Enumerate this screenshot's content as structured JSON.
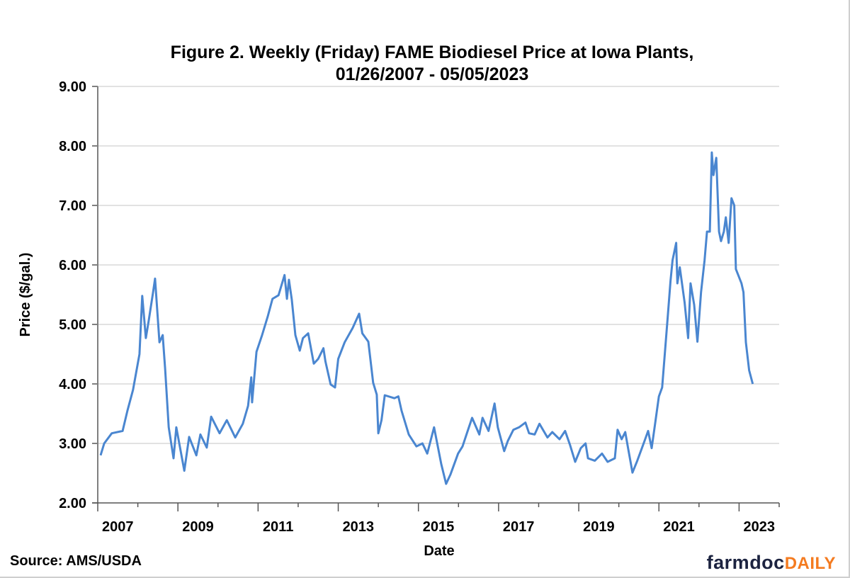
{
  "chart_data": {
    "type": "line",
    "title_line1": "Figure 2. Weekly (Friday) FAME Biodiesel Price at Iowa Plants,",
    "title_line2": "01/26/2007  - 05/05/2023",
    "xlabel": "Date",
    "ylabel": "Price ($/gal.)",
    "xlim": [
      2007,
      2024
    ],
    "ylim": [
      2.0,
      9.0
    ],
    "x_tick_labels": [
      "2007",
      "2009",
      "2011",
      "2013",
      "2015",
      "2017",
      "2019",
      "2021",
      "2023"
    ],
    "y_tick_labels": [
      "2.00",
      "3.00",
      "4.00",
      "5.00",
      "6.00",
      "7.00",
      "8.00",
      "9.00"
    ],
    "grid": "horizontal",
    "line_color": "#4a86d0",
    "series": [
      {
        "x": [
          2007.07,
          2007.16,
          2007.35,
          2007.62,
          2007.74,
          2007.88,
          2008.04,
          2008.11,
          2008.2,
          2008.27,
          2008.38,
          2008.43,
          2008.54,
          2008.62,
          2008.68,
          2008.77,
          2008.89,
          2008.96,
          2009.16,
          2009.28,
          2009.46,
          2009.56,
          2009.72,
          2009.83,
          2010.04,
          2010.22,
          2010.43,
          2010.62,
          2010.75,
          2010.83,
          2010.85,
          2010.96,
          2011.1,
          2011.24,
          2011.36,
          2011.51,
          2011.66,
          2011.72,
          2011.77,
          2011.84,
          2011.93,
          2012.04,
          2012.12,
          2012.25,
          2012.39,
          2012.5,
          2012.63,
          2012.68,
          2012.81,
          2012.92,
          2013.0,
          2013.16,
          2013.36,
          2013.52,
          2013.6,
          2013.75,
          2013.87,
          2013.96,
          2014.0,
          2014.08,
          2014.16,
          2014.4,
          2014.5,
          2014.58,
          2014.76,
          2014.95,
          2015.1,
          2015.22,
          2015.39,
          2015.57,
          2015.69,
          2015.8,
          2015.99,
          2016.1,
          2016.22,
          2016.34,
          2016.52,
          2016.6,
          2016.75,
          2016.9,
          2016.98,
          2017.14,
          2017.23,
          2017.37,
          2017.51,
          2017.67,
          2017.76,
          2017.9,
          2018.02,
          2018.22,
          2018.34,
          2018.52,
          2018.66,
          2018.78,
          2018.91,
          2019.05,
          2019.17,
          2019.23,
          2019.4,
          2019.58,
          2019.72,
          2019.9,
          2019.97,
          2020.07,
          2020.16,
          2020.23,
          2020.34,
          2020.46,
          2020.64,
          2020.73,
          2020.82,
          2020.9,
          2021.0,
          2021.08,
          2021.22,
          2021.29,
          2021.34,
          2021.43,
          2021.46,
          2021.52,
          2021.64,
          2021.73,
          2021.79,
          2021.88,
          2021.96,
          2022.05,
          2022.14,
          2022.2,
          2022.27,
          2022.32,
          2022.36,
          2022.43,
          2022.5,
          2022.55,
          2022.62,
          2022.67,
          2022.74,
          2022.81,
          2022.88,
          2022.92,
          2023.06,
          2023.11,
          2023.17,
          2023.25,
          2023.34
        ],
        "y": [
          2.8,
          3.0,
          3.17,
          3.21,
          3.55,
          3.9,
          4.5,
          5.48,
          4.77,
          5.06,
          5.54,
          5.77,
          4.7,
          4.82,
          4.26,
          3.27,
          2.75,
          3.27,
          2.54,
          3.11,
          2.8,
          3.15,
          2.93,
          3.45,
          3.17,
          3.39,
          3.1,
          3.33,
          3.63,
          4.11,
          3.69,
          4.54,
          4.82,
          5.13,
          5.43,
          5.49,
          5.83,
          5.43,
          5.75,
          5.42,
          4.82,
          4.56,
          4.77,
          4.85,
          4.34,
          4.42,
          4.6,
          4.38,
          3.99,
          3.94,
          4.42,
          4.7,
          4.94,
          5.18,
          4.85,
          4.71,
          4.02,
          3.82,
          3.17,
          3.39,
          3.81,
          3.76,
          3.79,
          3.55,
          3.15,
          2.95,
          3.0,
          2.83,
          3.27,
          2.65,
          2.32,
          2.48,
          2.83,
          2.95,
          3.19,
          3.43,
          3.15,
          3.43,
          3.21,
          3.67,
          3.27,
          2.87,
          3.04,
          3.23,
          3.27,
          3.35,
          3.17,
          3.15,
          3.33,
          3.1,
          3.19,
          3.07,
          3.21,
          2.98,
          2.69,
          2.92,
          3.0,
          2.75,
          2.71,
          2.83,
          2.69,
          2.75,
          3.23,
          3.07,
          3.19,
          2.92,
          2.51,
          2.71,
          3.04,
          3.21,
          2.92,
          3.31,
          3.79,
          3.94,
          5.13,
          5.73,
          6.08,
          6.37,
          5.69,
          5.96,
          5.37,
          4.77,
          5.69,
          5.33,
          4.71,
          5.54,
          6.08,
          6.56,
          6.56,
          7.89,
          7.51,
          7.8,
          6.56,
          6.4,
          6.56,
          6.8,
          6.37,
          7.12,
          7.0,
          5.93,
          5.69,
          5.54,
          4.7,
          4.23,
          4.0
        ]
      }
    ]
  },
  "source": "Source: AMS/USDA",
  "logo": {
    "part1": "farmdoc",
    "part2": "DAILY"
  }
}
